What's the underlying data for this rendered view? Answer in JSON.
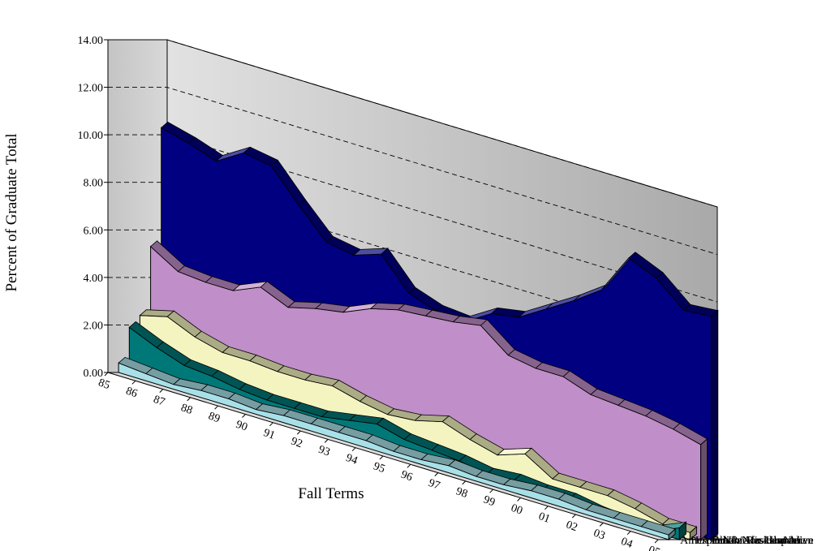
{
  "chart_data": {
    "type": "area",
    "title": "",
    "xlabel": "Fall Terms",
    "ylabel": "Percent of Graduate Total",
    "ylim": [
      0,
      14
    ],
    "y_ticks": [
      "0.00",
      "2.00",
      "4.00",
      "6.00",
      "8.00",
      "10.00",
      "12.00",
      "14.00"
    ],
    "grid": "dashed horizontal lines on back wall",
    "categories": [
      "85",
      "86",
      "87",
      "88",
      "89",
      "90",
      "91",
      "92",
      "93",
      "94",
      "95",
      "96",
      "97",
      "98",
      "99",
      "00",
      "01",
      "02",
      "03",
      "04",
      "05"
    ],
    "series": [
      {
        "name": "Non-Resident Alien",
        "color": "#000080",
        "values": [
          10.3,
          10.0,
          9.6,
          10.3,
          10.1,
          8.8,
          7.6,
          7.4,
          7.8,
          6.5,
          6.1,
          6.0,
          6.7,
          6.9,
          7.6,
          8.3,
          9.1,
          10.8,
          10.3,
          9.3,
          9.4
        ]
      },
      {
        "name": "Black/Non-Hispanic",
        "color": "#c08ec8",
        "values": [
          5.3,
          4.6,
          4.5,
          4.5,
          5.0,
          4.5,
          4.8,
          5.0,
          5.5,
          5.8,
          5.9,
          6.0,
          6.2,
          5.3,
          5.1,
          5.1,
          4.7,
          4.6,
          4.5,
          4.3,
          4.0
        ]
      },
      {
        "name": "Asian/Pacific Islander",
        "color": "#f4f4c0",
        "values": [
          2.4,
          2.7,
          2.2,
          1.9,
          1.9,
          1.8,
          1.8,
          1.9,
          1.6,
          1.4,
          1.5,
          1.8,
          1.4,
          1.1,
          1.5,
          0.8,
          0.8,
          0.8,
          0.6,
          0.3,
          0.3
        ]
      },
      {
        "name": "Hispanic",
        "color": "#007878",
        "values": [
          1.9,
          1.4,
          1.0,
          0.9,
          0.7,
          0.6,
          0.6,
          0.6,
          0.8,
          1.0,
          0.7,
          0.6,
          0.5,
          0.3,
          0.4,
          0.3,
          0.3,
          0.1,
          0.0,
          0.0,
          0.5
        ]
      },
      {
        "name": "Amer. Indian/Alaskan Native",
        "color": "#a8e0e8",
        "values": [
          0.4,
          0.3,
          0.2,
          0.3,
          0.3,
          0.2,
          0.3,
          0.3,
          0.3,
          0.3,
          0.2,
          0.2,
          0.3,
          0.2,
          0.2,
          0.3,
          0.3,
          0.2,
          0.2,
          0.2,
          0.2
        ]
      }
    ]
  }
}
